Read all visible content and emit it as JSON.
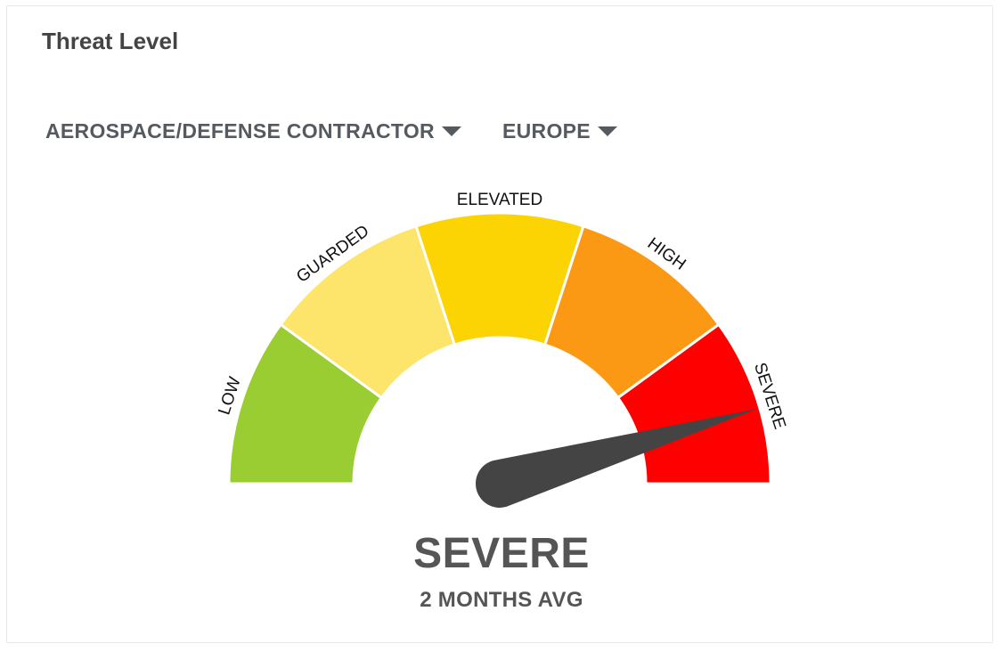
{
  "widget": {
    "title": "Threat Level"
  },
  "filters": {
    "sector": "AEROSPACE/DEFENSE CONTRACTOR",
    "region": "EUROPE"
  },
  "gauge": {
    "levels": [
      {
        "label": "LOW",
        "color": "#9acd32"
      },
      {
        "label": "GUARDED",
        "color": "#fde46b"
      },
      {
        "label": "ELEVATED",
        "color": "#fcd303"
      },
      {
        "label": "HIGH",
        "color": "#fc9914"
      },
      {
        "label": "SEVERE",
        "color": "#fe0000"
      }
    ],
    "needle_level_fraction": 0.91,
    "needle_color": "#444444",
    "value_label": "SEVERE",
    "caption": "2 MONTHS AVG"
  }
}
